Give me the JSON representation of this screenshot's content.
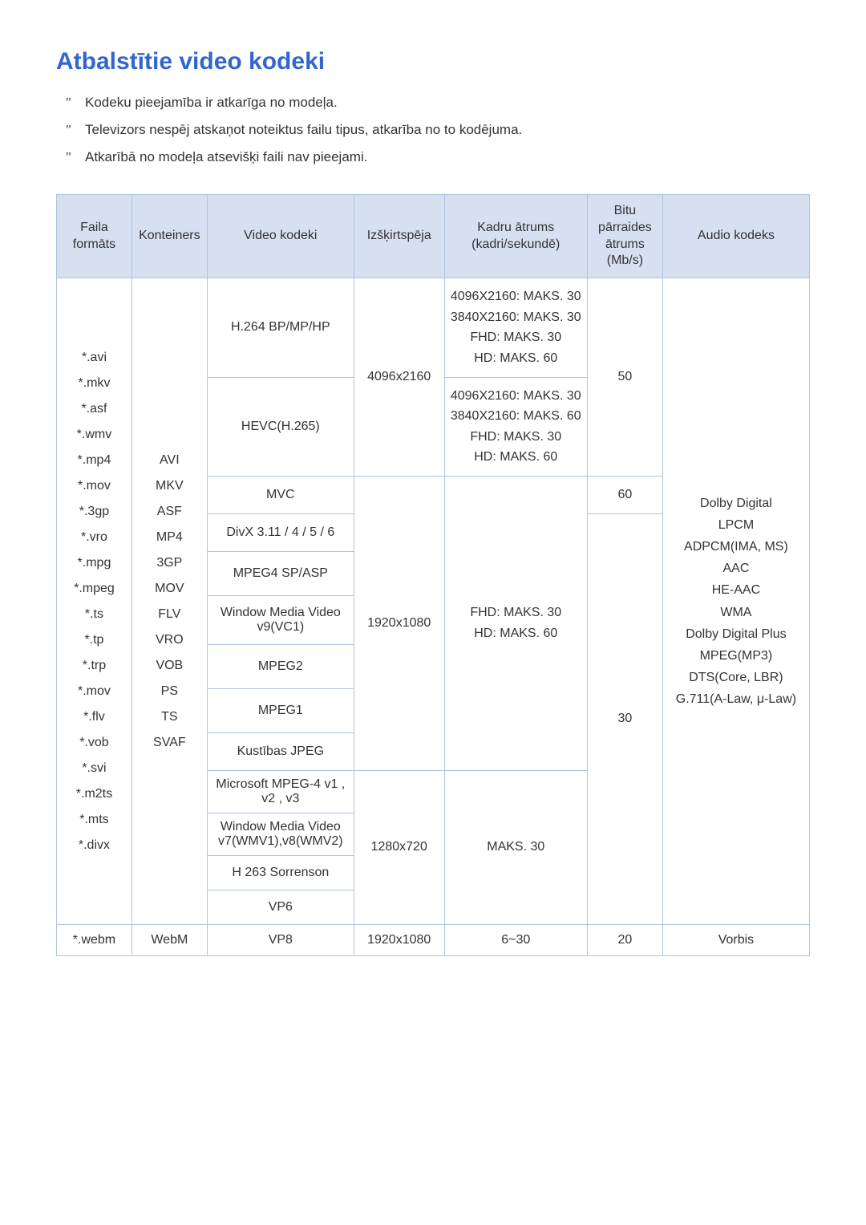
{
  "title": "Atbalstītie video kodeki",
  "notes": [
    "Kodeku pieejamība ir atkarīga no modeļa.",
    "Televizors nespēj atskaņot noteiktus failu tipus, atkarība no to kodējuma.",
    "Atkarībā no modeļa atsevišķi faili nav pieejami."
  ],
  "headers": {
    "format": "Faila formāts",
    "container": "Konteiners",
    "vcodec": "Video kodeki",
    "resolution": "Izšķirtspēja",
    "framerate": "Kadru ātrums (kadri/sekundē)",
    "bitrate": "Bitu pārraides ātrums (Mb/s)",
    "acodec": "Audio kodeks"
  },
  "formats": "*.avi\n*.mkv\n*.asf\n*.wmv\n*.mp4\n*.mov\n*.3gp\n*.vro\n*.mpg\n*.mpeg\n*.ts\n*.tp\n*.trp\n*.mov\n*.flv\n*.vob\n*.svi\n*.m2ts\n*.mts\n*.divx",
  "containers": "AVI\nMKV\nASF\nMP4\n3GP\nMOV\nFLV\nVRO\nVOB\nPS\nTS\nSVAF",
  "res1": "4096x2160",
  "res2": "1920x1080",
  "res3": "1280x720",
  "fr1": "4096X2160: MAKS. 30\n3840X2160: MAKS. 30\nFHD: MAKS. 30\nHD: MAKS. 60",
  "fr2": "4096X2160: MAKS. 30\n3840X2160: MAKS. 60\nFHD: MAKS. 30\nHD: MAKS. 60",
  "fr3": "FHD: MAKS. 30\nHD: MAKS. 60",
  "fr4": "MAKS. 30",
  "br1": "50",
  "br2": "60",
  "br3": "30",
  "acodecs": "Dolby Digital\nLPCM\nADPCM(IMA, MS)\nAAC\nHE-AAC\nWMA\nDolby Digital Plus\nMPEG(MP3)\nDTS(Core, LBR)\nG.711(A-Law, μ-Law)",
  "codecs": {
    "h264": "H.264 BP/MP/HP",
    "hevc": "HEVC(H.265)",
    "mvc": "MVC",
    "divx": "DivX 3.11 / 4 / 5 / 6",
    "mpeg4": "MPEG4 SP/ASP",
    "wmv9": "Window Media Video v9(VC1)",
    "mpeg2": "MPEG2",
    "mpeg1": "MPEG1",
    "mjpeg": "Kustības JPEG",
    "ms_mpeg4": "Microsoft MPEG-4 v1 , v2 , v3",
    "wmv78": "Window Media Video v7(WMV1),v8(WMV2)",
    "h263": "H 263 Sorrenson",
    "vp6": "VP6"
  },
  "webm": {
    "format": "*.webm",
    "container": "WebM",
    "vcodec": "VP8",
    "resolution": "1920x1080",
    "framerate": "6~30",
    "bitrate": "20",
    "acodec": "Vorbis"
  }
}
